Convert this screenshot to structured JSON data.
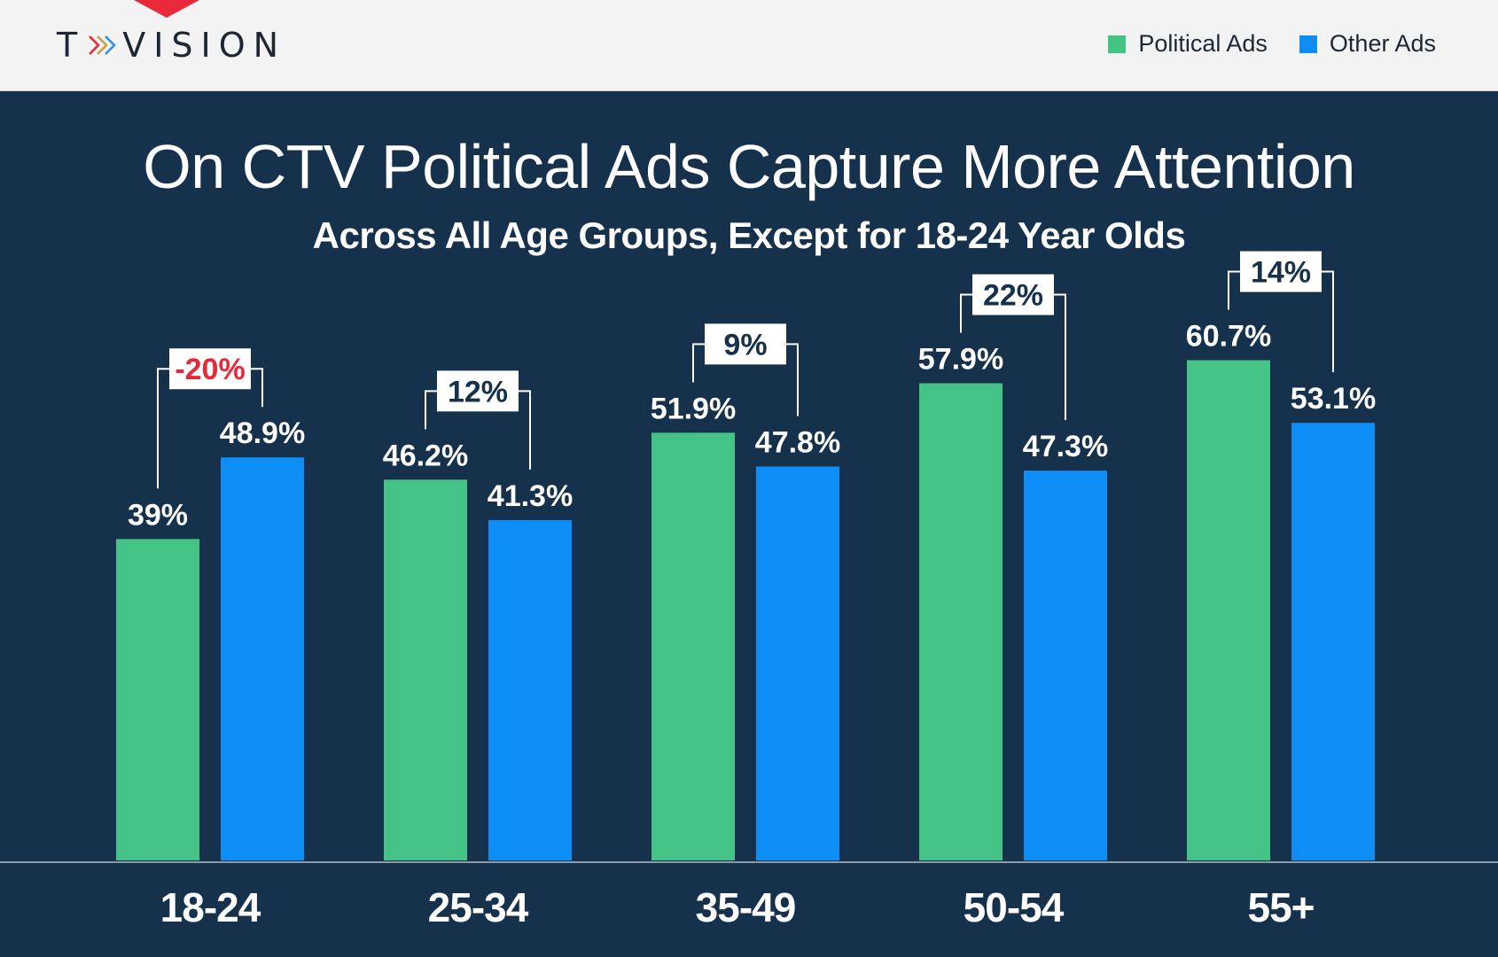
{
  "brand": {
    "logo_text": "TVISION",
    "logo_prefix": "T",
    "logo_suffix": "VISION"
  },
  "colors": {
    "political": "#43c385",
    "other": "#0d8ef6",
    "background": "#15314b",
    "negative": "#e8293a",
    "header_bg": "#f3f3f3"
  },
  "legend": {
    "political_label": "Political Ads",
    "other_label": "Other Ads"
  },
  "chart_data": {
    "type": "bar",
    "title": "On CTV Political Ads Capture More Attention",
    "subtitle": "Across All Age Groups, Except for 18-24 Year Olds",
    "xlabel": "",
    "ylabel": "",
    "ylim": [
      0,
      100
    ],
    "categories": [
      "18-24",
      "25-34",
      "35-49",
      "50-54",
      "55+"
    ],
    "series": [
      {
        "name": "Political Ads",
        "values": [
          39,
          46.2,
          51.9,
          57.9,
          60.7
        ],
        "labels": [
          "39%",
          "46.2%",
          "51.9%",
          "57.9%",
          "60.7%"
        ]
      },
      {
        "name": "Other Ads",
        "values": [
          48.9,
          41.3,
          47.8,
          47.3,
          53.1
        ],
        "labels": [
          "48.9%",
          "41.3%",
          "47.8%",
          "47.3%",
          "53.1%"
        ]
      }
    ],
    "differences": [
      "-20%",
      "12%",
      "9%",
      "22%",
      "14%"
    ],
    "difference_negative": [
      true,
      false,
      false,
      false,
      false
    ]
  }
}
